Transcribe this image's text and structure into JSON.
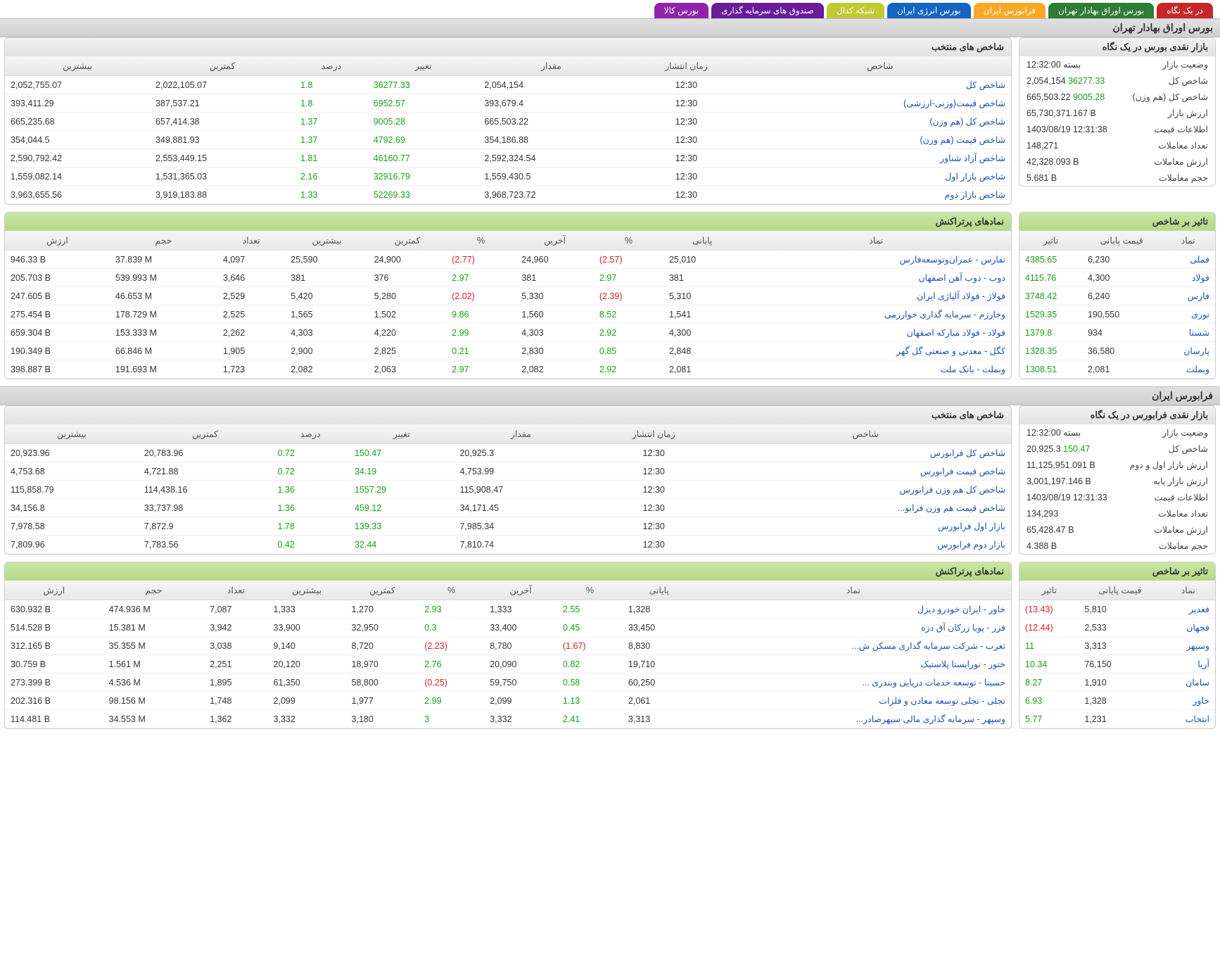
{
  "tabs": [
    {
      "label": "در یک نگاه",
      "bg": "#c62828"
    },
    {
      "label": "بورس اوراق بهادار تهران",
      "bg": "#2e7d32"
    },
    {
      "label": "فرابورس ایران",
      "bg": "#f9a825"
    },
    {
      "label": "بورس انرژی ایران",
      "bg": "#1565c0"
    },
    {
      "label": "شبکه کدال",
      "bg": "#c0ca33"
    },
    {
      "label": "صندوق های سرمایه گذاری",
      "bg": "#6a1b9a"
    },
    {
      "label": "بورس کالا",
      "bg": "#8e24aa"
    }
  ],
  "tse": {
    "header": "بورس اوراق بهادار تهران",
    "glance_title": "بازار نقدی بورس در یک نگاه",
    "glance": [
      {
        "k": "وضعیت بازار",
        "v": "بسته 12:32:00"
      },
      {
        "k": "شاخص کل",
        "v": "2,054,154",
        "d": "36277.33",
        "dc": "pos"
      },
      {
        "k": "شاخص کل (هم وزن)",
        "v": "665,503.22",
        "d": "9005.28",
        "dc": "pos"
      },
      {
        "k": "ارزش بازار",
        "v": "65,730,371.167 B"
      },
      {
        "k": "اطلاعات قیمت",
        "v": "1403/08/19 12:31:38"
      },
      {
        "k": "تعداد معاملات",
        "v": "148,271"
      },
      {
        "k": "ارزش معاملات",
        "v": "42,328.093 B"
      },
      {
        "k": "حجم معاملات",
        "v": "5.681 B"
      }
    ],
    "idx_title": "شاخص های منتخب",
    "idx_cols": [
      "شاخص",
      "زمان انتشار",
      "مقدار",
      "تغییر",
      "درصد",
      "کمترین",
      "بیشترین"
    ],
    "idx_rows": [
      {
        "n": "شاخص کل",
        "t": "12:30",
        "v": "2,054,154",
        "chg": "36277.33",
        "pct": "1.8",
        "lo": "2,022,105.07",
        "hi": "2,052,755.07"
      },
      {
        "n": "شاخص قیمت(وزنی-ارزشی)",
        "t": "12:30",
        "v": "393,679.4",
        "chg": "6952.57",
        "pct": "1.8",
        "lo": "387,537.21",
        "hi": "393,411.29"
      },
      {
        "n": "شاخص کل (هم وزن)",
        "t": "12:30",
        "v": "665,503.22",
        "chg": "9005.28",
        "pct": "1.37",
        "lo": "657,414.38",
        "hi": "665,235.68"
      },
      {
        "n": "شاخص قیمت (هم وزن)",
        "t": "12:30",
        "v": "354,186.88",
        "chg": "4792.69",
        "pct": "1.37",
        "lo": "349,881.93",
        "hi": "354,044.5"
      },
      {
        "n": "شاخص آزاد شناور",
        "t": "12:30",
        "v": "2,592,324.54",
        "chg": "46160.77",
        "pct": "1.81",
        "lo": "2,553,449.15",
        "hi": "2,590,792.42"
      },
      {
        "n": "شاخص بازار اول",
        "t": "12:30",
        "v": "1,559,430.5",
        "chg": "32916.79",
        "pct": "2.16",
        "lo": "1,531,365.03",
        "hi": "1,559,082.14"
      },
      {
        "n": "شاخص بازار دوم",
        "t": "12:30",
        "v": "3,968,723.72",
        "chg": "52269.33",
        "pct": "1.33",
        "lo": "3,919,183.88",
        "hi": "3,963,655.56"
      }
    ],
    "impact_title": "تاثیر بر شاخص",
    "impact_cols": [
      "نماد",
      "قیمت پایانی",
      "تاثیر"
    ],
    "impact_rows": [
      {
        "s": "فملی",
        "p": "6,230",
        "e": "4385.65",
        "ec": "pos"
      },
      {
        "s": "فولاد",
        "p": "4,300",
        "e": "4115.76",
        "ec": "pos"
      },
      {
        "s": "فارس",
        "p": "6,240",
        "e": "3748.42",
        "ec": "pos"
      },
      {
        "s": "نوری",
        "p": "190,550",
        "e": "1529.35",
        "ec": "pos"
      },
      {
        "s": "شستا",
        "p": "934",
        "e": "1379.8",
        "ec": "pos"
      },
      {
        "s": "پارسان",
        "p": "36,580",
        "e": "1328.35",
        "ec": "pos"
      },
      {
        "s": "وبملت",
        "p": "2,081",
        "e": "1308.51",
        "ec": "pos"
      }
    ],
    "trades_title": "نمادهای پرتراکنش",
    "trades_cols": [
      "نماد",
      "پایانی",
      "%",
      "آخرین",
      "%",
      "کمترین",
      "بیشترین",
      "تعداد",
      "حجم",
      "ارزش"
    ],
    "trades_rows": [
      {
        "s": "تفارس - عمران‌وتوسعه‌فارس",
        "close": "25,010",
        "cp": "(2.57)",
        "cpc": "neg",
        "last": "24,960",
        "lp": "(2.77)",
        "lpc": "neg",
        "lo": "24,900",
        "hi": "25,590",
        "cnt": "4,097",
        "vol": "37.839 M",
        "val": "946.33 B"
      },
      {
        "s": "ذوب - ذوب آهن اصفهان",
        "close": "381",
        "cp": "2.97",
        "cpc": "pos",
        "last": "381",
        "lp": "2.97",
        "lpc": "pos",
        "lo": "376",
        "hi": "381",
        "cnt": "3,646",
        "vol": "539.993 M",
        "val": "205.703 B"
      },
      {
        "s": "فولاژ - فولاد آلیاژی ایران",
        "close": "5,310",
        "cp": "(2.39)",
        "cpc": "neg",
        "last": "5,330",
        "lp": "(2.02)",
        "lpc": "neg",
        "lo": "5,280",
        "hi": "5,420",
        "cnt": "2,529",
        "vol": "46.653 M",
        "val": "247.605 B"
      },
      {
        "s": "وخارزم - سرمایه گذاری خوارزمی",
        "close": "1,541",
        "cp": "8.52",
        "cpc": "pos",
        "last": "1,560",
        "lp": "9.86",
        "lpc": "pos",
        "lo": "1,502",
        "hi": "1,565",
        "cnt": "2,525",
        "vol": "178.729 M",
        "val": "275.454 B"
      },
      {
        "s": "فولاد - فولاد مبارکه اصفهان",
        "close": "4,300",
        "cp": "2.92",
        "cpc": "pos",
        "last": "4,303",
        "lp": "2.99",
        "lpc": "pos",
        "lo": "4,220",
        "hi": "4,303",
        "cnt": "2,262",
        "vol": "153.333 M",
        "val": "659.304 B"
      },
      {
        "s": "کگل - معدنی و صنعتی گل گهر",
        "close": "2,848",
        "cp": "0.85",
        "cpc": "pos",
        "last": "2,830",
        "lp": "0.21",
        "lpc": "pos",
        "lo": "2,825",
        "hi": "2,900",
        "cnt": "1,905",
        "vol": "66.846 M",
        "val": "190.349 B"
      },
      {
        "s": "وبملت - بانک ملت",
        "close": "2,081",
        "cp": "2.92",
        "cpc": "pos",
        "last": "2,082",
        "lp": "2.97",
        "lpc": "pos",
        "lo": "2,063",
        "hi": "2,082",
        "cnt": "1,723",
        "vol": "191.693 M",
        "val": "398.887 B"
      }
    ]
  },
  "ifb": {
    "header": "فرابورس ایران",
    "glance_title": "بازار نقدی فرابورس در یک نگاه",
    "glance": [
      {
        "k": "وضعیت بازار",
        "v": "بسته 12:32:00"
      },
      {
        "k": "شاخص کل",
        "v": "20,925.3",
        "d": "150.47",
        "dc": "pos"
      },
      {
        "k": "ارزش بازار اول و دوم",
        "v": "11,125,951.091 B"
      },
      {
        "k": "ارزش بازار پایه",
        "v": "3,001,197.146 B"
      },
      {
        "k": "اطلاعات قیمت",
        "v": "1403/08/19 12:31:33"
      },
      {
        "k": "تعداد معاملات",
        "v": "134,293"
      },
      {
        "k": "ارزش معاملات",
        "v": "65,428.47 B"
      },
      {
        "k": "حجم معاملات",
        "v": "4.388 B"
      }
    ],
    "idx_title": "شاخص های منتخب",
    "idx_rows": [
      {
        "n": "شاخص کل فرابورس",
        "t": "12:30",
        "v": "20,925.3",
        "chg": "150.47",
        "pct": "0.72",
        "lo": "20,783.96",
        "hi": "20,923.96"
      },
      {
        "n": "شاخص قیمت فرابورس",
        "t": "12:30",
        "v": "4,753.99",
        "chg": "34.19",
        "pct": "0.72",
        "lo": "4,721.88",
        "hi": "4,753.68"
      },
      {
        "n": "شاخص کل هم وزن فرابورس",
        "t": "12:30",
        "v": "115,908.47",
        "chg": "1557.29",
        "pct": "1.36",
        "lo": "114,438.16",
        "hi": "115,858.79"
      },
      {
        "n": "شاخص قیمت هم وزن فرابو...",
        "t": "12:30",
        "v": "34,171.45",
        "chg": "459.12",
        "pct": "1.36",
        "lo": "33,737.98",
        "hi": "34,156.8"
      },
      {
        "n": "بازار اول فرابورس",
        "t": "12:30",
        "v": "7,985.34",
        "chg": "139.33",
        "pct": "1.78",
        "lo": "7,872.9",
        "hi": "7,978.58"
      },
      {
        "n": "بازار دوم فرابورس",
        "t": "12:30",
        "v": "7,810.74",
        "chg": "32.44",
        "pct": "0.42",
        "lo": "7,783.56",
        "hi": "7,809.96"
      }
    ],
    "impact_title": "تاثیر بر شاخص",
    "impact_rows": [
      {
        "s": "فغدیر",
        "p": "5,810",
        "e": "(13.43)",
        "ec": "neg"
      },
      {
        "s": "فجهان",
        "p": "2,533",
        "e": "(12.44)",
        "ec": "neg"
      },
      {
        "s": "وسپهر",
        "p": "3,313",
        "e": "11",
        "ec": "pos"
      },
      {
        "s": "آریا",
        "p": "76,150",
        "e": "10.34",
        "ec": "pos"
      },
      {
        "s": "سامان",
        "p": "1,910",
        "e": "8.27",
        "ec": "pos"
      },
      {
        "s": "خاور",
        "p": "1,328",
        "e": "6.93",
        "ec": "pos"
      },
      {
        "s": "انتخاب",
        "p": "1,231",
        "e": "5.77",
        "ec": "pos"
      }
    ],
    "trades_title": "نمادهای پرتراکنش",
    "trades_rows": [
      {
        "s": "خاور - ایران خودرو دیزل",
        "close": "1,328",
        "cp": "2.55",
        "cpc": "pos",
        "last": "1,333",
        "lp": "2.93",
        "lpc": "pos",
        "lo": "1,270",
        "hi": "1,333",
        "cnt": "7,087",
        "vol": "474.936 M",
        "val": "630.932 B"
      },
      {
        "s": "فزر - پویا زرکان آق دره",
        "close": "33,450",
        "cp": "0.45",
        "cpc": "pos",
        "last": "33,400",
        "lp": "0.3",
        "lpc": "pos",
        "lo": "32,950",
        "hi": "33,900",
        "cnt": "3,942",
        "vol": "15.381 M",
        "val": "514.528 B"
      },
      {
        "s": "ثغرب - شرکت سرمایه گذاری مسکن ش...",
        "close": "8,830",
        "cp": "(1.67)",
        "cpc": "neg",
        "last": "8,780",
        "lp": "(2.23)",
        "lpc": "neg",
        "lo": "8,720",
        "hi": "9,140",
        "cnt": "3,038",
        "vol": "35.355 M",
        "val": "312.165 B"
      },
      {
        "s": "ختور - نورایستا پلاستیک",
        "close": "19,710",
        "cp": "0.82",
        "cpc": "pos",
        "last": "20,090",
        "lp": "2.76",
        "lpc": "pos",
        "lo": "18,970",
        "hi": "20,120",
        "cnt": "2,251",
        "vol": "1.561 M",
        "val": "30.759 B"
      },
      {
        "s": "حسینا - توسعه خدمات دریایی وبندری ...",
        "close": "60,250",
        "cp": "0.58",
        "cpc": "pos",
        "last": "59,750",
        "lp": "(0.25)",
        "lpc": "neg",
        "lo": "58,800",
        "hi": "61,350",
        "cnt": "1,895",
        "vol": "4.536 M",
        "val": "273.399 B"
      },
      {
        "s": "تجلی - تجلی توسعه معادن و فلزات",
        "close": "2,061",
        "cp": "1.13",
        "cpc": "pos",
        "last": "2,099",
        "lp": "2.99",
        "lpc": "pos",
        "lo": "1,977",
        "hi": "2,099",
        "cnt": "1,748",
        "vol": "98.156 M",
        "val": "202.316 B"
      },
      {
        "s": "وسپهر - سرمایه گذاری مالی سپهرصادر...",
        "close": "3,313",
        "cp": "2.41",
        "cpc": "pos",
        "last": "3,332",
        "lp": "3",
        "lpc": "pos",
        "lo": "3,180",
        "hi": "3,332",
        "cnt": "1,362",
        "vol": "34.553 M",
        "val": "114.481 B"
      }
    ]
  }
}
